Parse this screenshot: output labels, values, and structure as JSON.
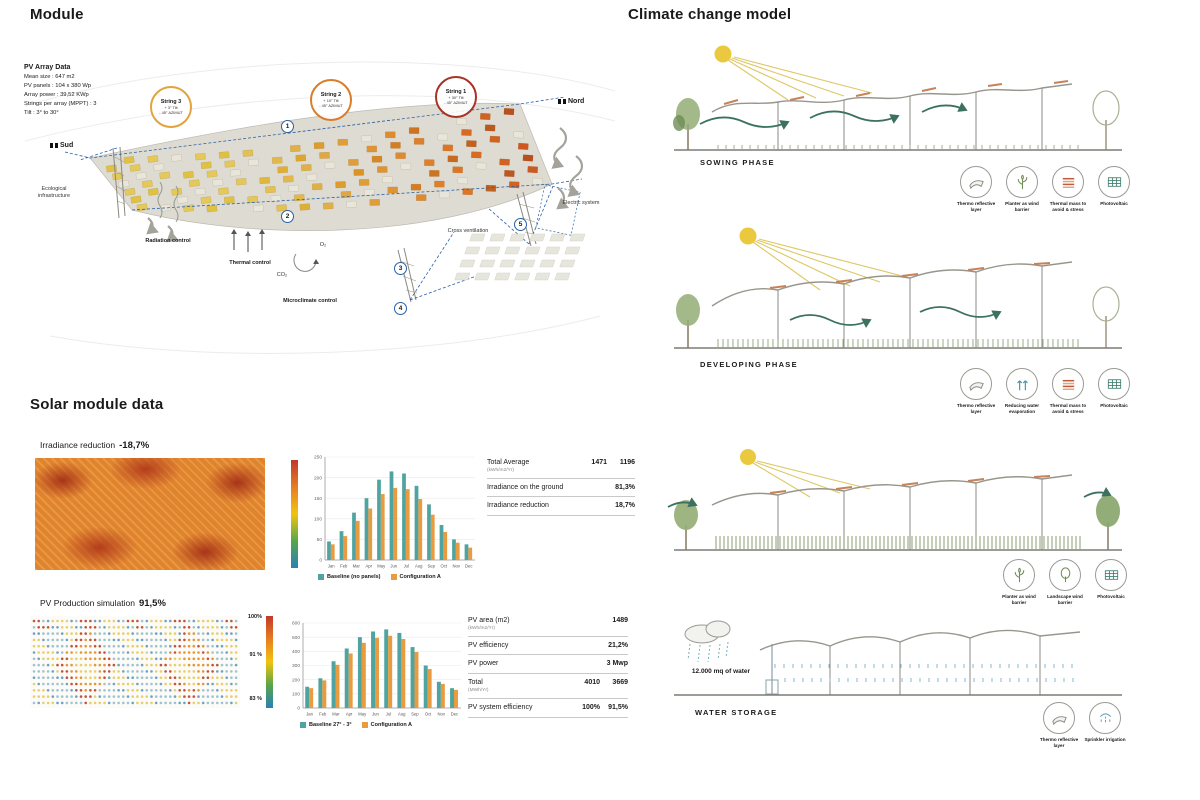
{
  "page": {
    "module_title": "Module",
    "solar_title": "Solar module data",
    "climate_title": "Climate change model"
  },
  "module_diagram": {
    "pv_array": {
      "title": "PV Array Data",
      "lines": [
        "Mean size : 647 m2",
        "PV panels : 104 x 380 Wp",
        "Array power : 39,52 KWp",
        "Strings per array (MPPT) : 3",
        "Tilt : 3° to 30°"
      ]
    },
    "strings": [
      {
        "name": "String 3",
        "tilt": "+ 3° Tilt",
        "azimut": "- 45° AZIMUT",
        "color": "#e2a33c"
      },
      {
        "name": "String 2",
        "tilt": "+ 10° Tilt",
        "azimut": "- 45° AZIMUT",
        "color": "#d97c2b"
      },
      {
        "name": "String 1",
        "tilt": "+ 30° Tilt",
        "azimut": "- 45° AZIMUT",
        "color": "#a93226"
      }
    ],
    "compass_south": "Sud",
    "compass_north": "Nord",
    "labels": {
      "eco": "Ecological infrastructure",
      "radiation": "Radiation control",
      "thermal": "Thermal control",
      "microclimate": "Microclimate control",
      "electric": "Electric system",
      "ventilation": "Cross ventilation",
      "o2": "O₂",
      "co2": "CO₂"
    },
    "markers": [
      "1",
      "2",
      "3",
      "4",
      "5"
    ]
  },
  "solar_module": {
    "irradiance": {
      "label": "Irradiance reduction",
      "value": "-18,7%",
      "stats": [
        {
          "label": "Total Average",
          "unit": "(kWh/m2/Yr)",
          "v1": "1471",
          "v2": "1196"
        },
        {
          "label": "Irradiance on the ground",
          "v1": "81,3%"
        },
        {
          "label": "Irradiance reduction",
          "v1": "18,7%"
        }
      ]
    },
    "pv": {
      "label": "PV Production simulation",
      "value": "91,5%",
      "scale": [
        "100%",
        "91 %",
        "83 %"
      ],
      "stats": [
        {
          "label": "PV area (m2)",
          "unit": "(kWh/m2/Yr)",
          "v1": "1489"
        },
        {
          "label": "PV efficiency",
          "v1": "21,2%"
        },
        {
          "label": "PV power",
          "v1": "3 Mwp"
        },
        {
          "label": "Total",
          "unit": "(MWh/Yr)",
          "v1": "4010",
          "v2": "3669"
        },
        {
          "label": "PV system efficiency",
          "v1": "100%",
          "v2": "91,5%"
        }
      ]
    }
  },
  "climate_model": {
    "phases": [
      {
        "name": "SOWING PHASE",
        "icons": [
          {
            "label": "Thermo reflective layer",
            "type": "sheet"
          },
          {
            "label": "Planter as wind barrier",
            "type": "plant"
          },
          {
            "label": "Thermal mass to avoid & stress",
            "type": "stripes"
          },
          {
            "label": "Photovoltaic",
            "type": "pv"
          }
        ]
      },
      {
        "name": "DEVELOPING PHASE",
        "icons": [
          {
            "label": "Thermo reflective layer",
            "type": "sheet"
          },
          {
            "label": "Reducing water evaporation",
            "type": "arrows"
          },
          {
            "label": "Thermal mass to avoid & stress",
            "type": "stripes"
          },
          {
            "label": "Photovoltaic",
            "type": "pv"
          }
        ]
      },
      {
        "name": "",
        "icons": [
          {
            "label": "Planter as wind barrier",
            "type": "plant"
          },
          {
            "label": "Landscape wind barrier",
            "type": "tree"
          },
          {
            "label": "Photovoltaic",
            "type": "pv"
          }
        ]
      },
      {
        "name": "WATER STORAGE",
        "water_note": "12.000 mq of water",
        "icons": [
          {
            "label": "Thermo reflective layer",
            "type": "sheet"
          },
          {
            "label": "Sprinkler irrigation",
            "type": "sprinkler"
          }
        ]
      }
    ]
  },
  "chart_data": [
    {
      "type": "bar",
      "title": "",
      "categories": [
        "Jan",
        "Feb",
        "Mar",
        "Apr",
        "May",
        "Jun",
        "Jul",
        "Aug",
        "Sep",
        "Oct",
        "Nov",
        "Dec"
      ],
      "series": [
        {
          "name": "Baseline (no panels)",
          "color": "#4fa3a0",
          "values": [
            45,
            70,
            115,
            150,
            195,
            215,
            210,
            180,
            135,
            85,
            50,
            38
          ]
        },
        {
          "name": "Configuration A",
          "color": "#e89b3f",
          "values": [
            38,
            58,
            95,
            125,
            160,
            175,
            172,
            148,
            110,
            68,
            42,
            30
          ]
        }
      ],
      "xlabel": "",
      "ylabel": "",
      "ylim": [
        0,
        250
      ],
      "ytick": 50,
      "grid": true,
      "legend_position": "bottom"
    },
    {
      "type": "bar",
      "title": "",
      "categories": [
        "Jan",
        "Feb",
        "Mar",
        "Apr",
        "May",
        "Jun",
        "Jul",
        "Aug",
        "Sep",
        "Oct",
        "Nov",
        "Dec"
      ],
      "series": [
        {
          "name": "Baseline 27° - 3°",
          "color": "#4fa3a0",
          "values": [
            150,
            210,
            330,
            420,
            500,
            540,
            555,
            530,
            430,
            300,
            185,
            140
          ]
        },
        {
          "name": "Configuration A",
          "color": "#e89b3f",
          "values": [
            140,
            195,
            305,
            385,
            460,
            495,
            510,
            487,
            395,
            275,
            170,
            128
          ]
        }
      ],
      "xlabel": "",
      "ylabel": "",
      "ylim": [
        0,
        600
      ],
      "ytick": 100,
      "grid": true,
      "legend_position": "bottom"
    }
  ]
}
